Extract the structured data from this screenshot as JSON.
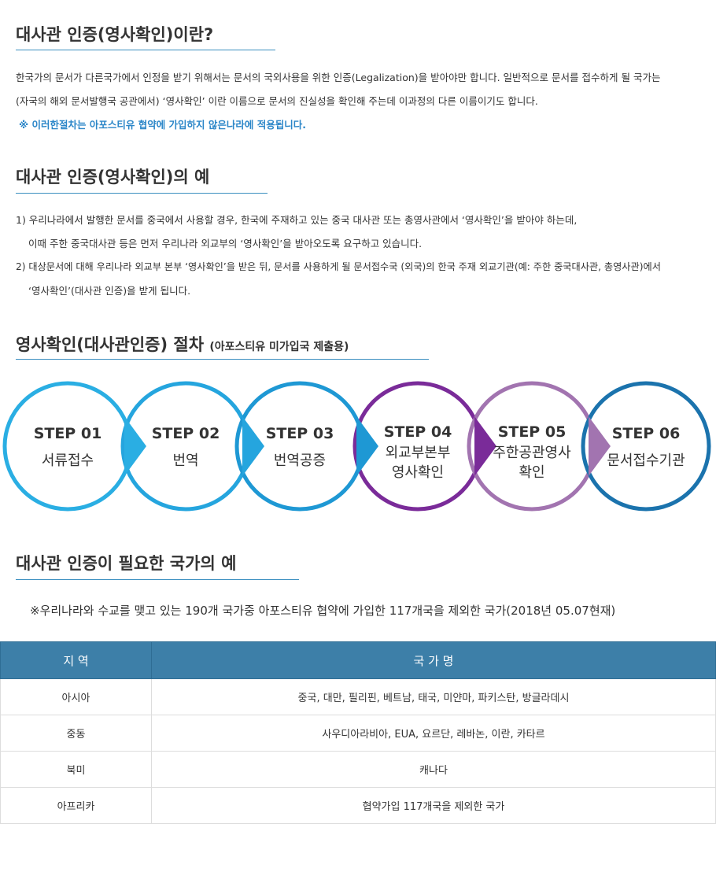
{
  "section1": {
    "title": "대사관 인증(영사확인)이란?",
    "lines": [
      "한국가의 문서가 다른국가에서 인정을 받기 위해서는 문서의 국외사용을 위한 인증(Legalization)을 받아야만 합니다. 일반적으로 문서를 접수하게 될 국가는",
      "(자국의 해외 문서발행국 공관에서) ‘영사확인’ 이란 이름으로 문서의 진실성을 확인해 주는데 이과정의 다른 이름이기도 합니다."
    ],
    "note": "※ 이러한절차는 아포스티유 협약에 가입하지 않은나라에 적용됩니다."
  },
  "section2": {
    "title": "대사관 인증(영사확인)의 예",
    "lines": [
      "1) 우리나라에서 발행한 문서를 중국에서 사용할 경우, 한국에 주재하고 있는 중국 대사관 또는 총영사관에서 ‘영사확인’을 받아야 하는데,",
      "이때 주한 중국대사관 등은 먼저 우리나라 외교부의 ‘영사확인’을 받아오도록 요구하고 있습니다.",
      "2) 대상문서에 대해 우리나라 외교부 본부 ‘영사확인’을 받은 뒤, 문서를 사용하게 될 문서접수국 (외국)의 한국 주재 외교기관(예: 주한 중국대사관, 총영사관)에서",
      "‘영사확인’(대사관 인증)을 받게 됩니다."
    ]
  },
  "section3": {
    "title": "영사확인(대사관인증) 절차",
    "subtitle": "(아포스티유 미가입국 제출용)",
    "steps": [
      {
        "label": "STEP 01",
        "lines": [
          "서류접수"
        ]
      },
      {
        "label": "STEP 02",
        "lines": [
          "번역"
        ]
      },
      {
        "label": "STEP 03",
        "lines": [
          "번역공증"
        ]
      },
      {
        "label": "STEP 04",
        "lines": [
          "외교부본부",
          "영사확인"
        ]
      },
      {
        "label": "STEP 05",
        "lines": [
          "주한공관영사",
          "확인"
        ]
      },
      {
        "label": "STEP 06",
        "lines": [
          "문서접수기관"
        ]
      }
    ]
  },
  "section4": {
    "title": "대사관 인증이 필요한 국가의 예",
    "note": "※우리나라와 수교를 맺고 있는 190개 국가중 아포스티유 협약에 가입한 117개국을 제외한 국가(2018년 05.07현재)",
    "table": {
      "headers": [
        "지 역",
        "국 가 명"
      ],
      "rows": [
        [
          "아시아",
          "중국, 대만, 필리핀, 베트남, 태국, 미얀마, 파키스탄, 방글라데시"
        ],
        [
          "중동",
          "사우디아라비아, EUA, 요르단, 레바논, 이란, 카타르"
        ],
        [
          "북미",
          "캐나다"
        ],
        [
          "아프리카",
          "협약가입 117개국을 제외한 국가"
        ]
      ]
    }
  }
}
